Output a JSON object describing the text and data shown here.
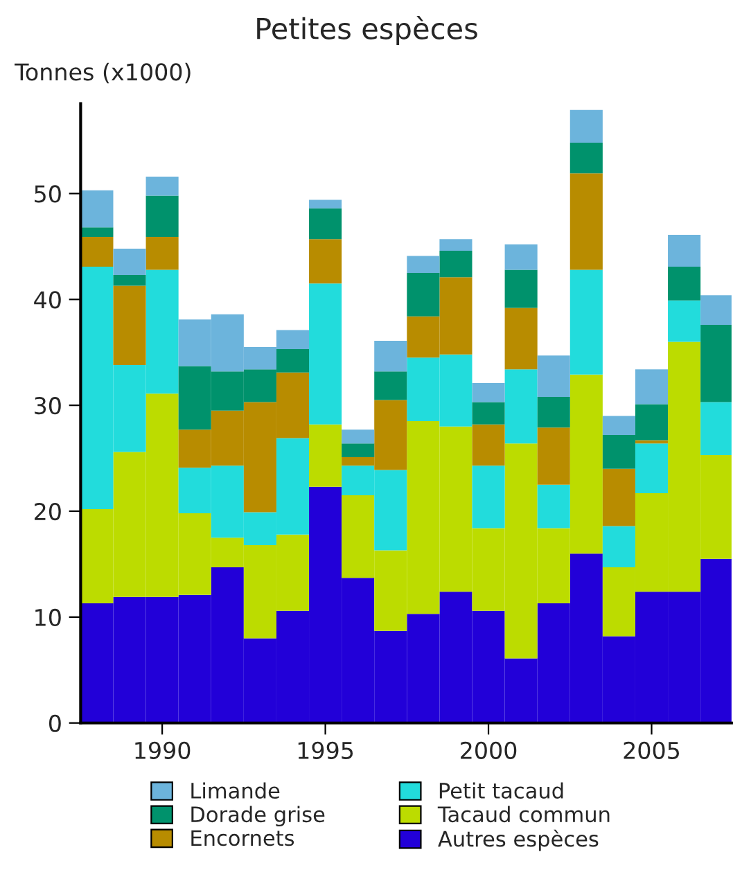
{
  "chart_data": {
    "type": "bar",
    "stacked": true,
    "title": "Petites espèces",
    "ylabel": "Tonnes (x1000)",
    "x": [
      1988,
      1989,
      1990,
      1991,
      1992,
      1993,
      1994,
      1995,
      1996,
      1997,
      1998,
      1999,
      2000,
      2001,
      2002,
      2003,
      2004,
      2005,
      2006,
      2007
    ],
    "series": [
      {
        "name": "Autres espèces",
        "color": "#2200d8",
        "values": [
          11.3,
          11.9,
          11.9,
          12.1,
          14.7,
          8.0,
          10.6,
          22.3,
          13.7,
          8.7,
          10.3,
          12.4,
          10.6,
          6.1,
          11.3,
          16.0,
          8.2,
          12.4,
          12.4,
          15.5
        ]
      },
      {
        "name": "Tacaud commun",
        "color": "#bcdc00",
        "values": [
          8.9,
          13.7,
          19.2,
          7.7,
          2.8,
          8.8,
          7.2,
          5.9,
          7.8,
          7.6,
          18.2,
          15.6,
          7.8,
          20.3,
          7.1,
          16.9,
          6.5,
          9.3,
          23.6,
          9.8
        ]
      },
      {
        "name": "Petit tacaud",
        "color": "#22dcdc",
        "values": [
          22.9,
          8.2,
          11.7,
          4.3,
          6.8,
          3.1,
          9.1,
          13.3,
          2.8,
          7.6,
          6.0,
          6.8,
          5.9,
          7.0,
          4.1,
          9.9,
          3.9,
          4.7,
          3.9,
          5.0
        ]
      },
      {
        "name": "Encornets",
        "color": "#b88c00",
        "values": [
          2.8,
          7.5,
          3.1,
          3.6,
          5.2,
          10.4,
          6.2,
          4.2,
          0.8,
          6.6,
          3.9,
          7.3,
          3.9,
          5.8,
          5.4,
          9.1,
          5.4,
          0.3,
          0.0,
          0.0
        ]
      },
      {
        "name": "Dorade grise",
        "color": "#00926c",
        "values": [
          0.9,
          1.0,
          3.9,
          6.0,
          3.7,
          3.1,
          2.2,
          2.9,
          1.3,
          2.7,
          4.1,
          2.5,
          2.1,
          3.6,
          2.9,
          2.9,
          3.2,
          3.4,
          3.2,
          7.3
        ]
      },
      {
        "name": "Limande",
        "color": "#6cb4dc",
        "values": [
          3.5,
          2.5,
          1.8,
          4.4,
          5.4,
          2.1,
          1.8,
          0.8,
          1.3,
          2.9,
          1.6,
          1.1,
          1.8,
          2.4,
          3.9,
          3.1,
          1.8,
          3.3,
          3.0,
          2.8
        ]
      }
    ],
    "xlim": [
      1987.5,
      2007.45
    ],
    "xticks": [
      1990,
      1995,
      2000,
      2005
    ],
    "ylim": [
      0,
      58.5
    ],
    "yticks": [
      0,
      10,
      20,
      30,
      40,
      50
    ],
    "grid": false,
    "legend": "bottom"
  }
}
